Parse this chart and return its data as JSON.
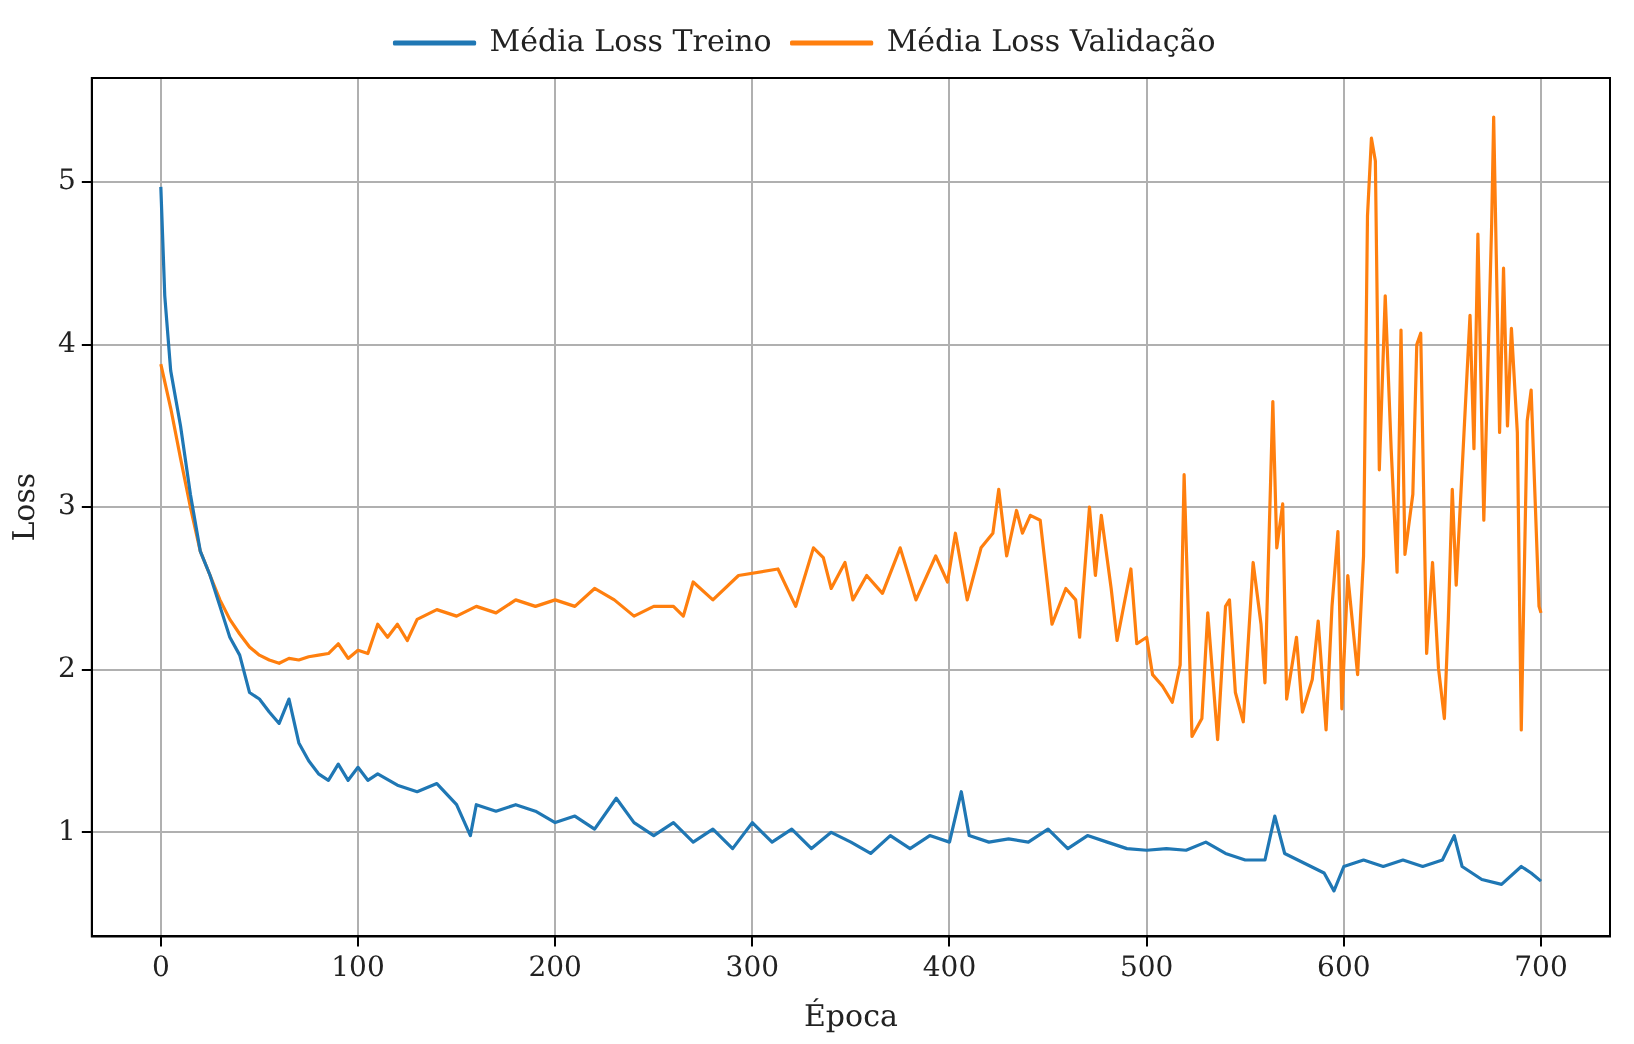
{
  "chart_data": {
    "type": "line",
    "xlabel": "Época",
    "ylabel": "Loss",
    "xlim": [
      -35,
      735
    ],
    "ylim": [
      0.36,
      5.64
    ],
    "xticks": [
      0,
      100,
      200,
      300,
      400,
      500,
      600,
      700
    ],
    "yticks": [
      1,
      2,
      3,
      4,
      5
    ],
    "grid": true,
    "legend": "top",
    "marker": "none",
    "line_style": "solid",
    "series": [
      {
        "name": "Média Loss Treino",
        "color": "#1f77b4",
        "x": [
          0,
          2,
          5,
          10,
          15,
          20,
          25,
          30,
          35,
          40,
          45,
          50,
          55,
          60,
          65,
          70,
          75,
          80,
          85,
          90,
          95,
          100,
          105,
          110,
          120,
          130,
          140,
          150,
          157,
          160,
          170,
          180,
          190,
          200,
          210,
          220,
          231,
          240,
          250,
          260,
          270,
          280,
          290,
          300,
          310,
          320,
          330,
          340,
          350,
          360,
          370,
          380,
          390,
          400,
          406,
          410,
          420,
          430,
          440,
          450,
          460,
          470,
          480,
          490,
          500,
          510,
          520,
          530,
          540,
          550,
          560,
          565,
          570,
          580,
          590,
          595,
          600,
          610,
          620,
          630,
          640,
          650,
          656,
          660,
          670,
          680,
          690,
          695,
          700
        ],
        "values": [
          4.97,
          4.3,
          3.84,
          3.5,
          3.08,
          2.73,
          2.58,
          2.39,
          2.2,
          2.09,
          1.86,
          1.82,
          1.74,
          1.67,
          1.82,
          1.55,
          1.44,
          1.36,
          1.32,
          1.42,
          1.32,
          1.4,
          1.32,
          1.36,
          1.29,
          1.25,
          1.3,
          1.17,
          0.98,
          1.17,
          1.13,
          1.17,
          1.13,
          1.06,
          1.1,
          1.02,
          1.21,
          1.06,
          0.98,
          1.06,
          0.94,
          1.02,
          0.9,
          1.06,
          0.94,
          1.02,
          0.9,
          1.0,
          0.94,
          0.87,
          0.98,
          0.9,
          0.98,
          0.94,
          1.25,
          0.98,
          0.94,
          0.96,
          0.94,
          1.02,
          0.9,
          0.98,
          0.94,
          0.9,
          0.89,
          0.9,
          0.89,
          0.94,
          0.87,
          0.83,
          0.83,
          1.1,
          0.87,
          0.81,
          0.75,
          0.64,
          0.79,
          0.83,
          0.79,
          0.83,
          0.79,
          0.83,
          0.98,
          0.79,
          0.71,
          0.68,
          0.79,
          0.75,
          0.7
        ]
      },
      {
        "name": "Média Loss Validação",
        "color": "#ff7f0e",
        "x": [
          0,
          5,
          10,
          15,
          20,
          25,
          30,
          35,
          40,
          45,
          50,
          55,
          60,
          65,
          70,
          75,
          80,
          85,
          90,
          95,
          100,
          105,
          110,
          115,
          120,
          125,
          130,
          140,
          150,
          160,
          170,
          180,
          190,
          200,
          210,
          220,
          230,
          240,
          250,
          260,
          265,
          270,
          280,
          293,
          313,
          322,
          331,
          336,
          340,
          347,
          351,
          358,
          366,
          375,
          383,
          393,
          399,
          403,
          409,
          416,
          422,
          425,
          429,
          434,
          437,
          441,
          446,
          452,
          459,
          464,
          466,
          471,
          474,
          477,
          482,
          485,
          492,
          495,
          500,
          503,
          508,
          513,
          517,
          519,
          523,
          528,
          531,
          536,
          540,
          542,
          545,
          549,
          554,
          558,
          560,
          564,
          566,
          569,
          571,
          576,
          579,
          584,
          587,
          591,
          594,
          597,
          599,
          602,
          607,
          610,
          612,
          614,
          616,
          618,
          621,
          624,
          627,
          629,
          631,
          635,
          637,
          639,
          642,
          645,
          648,
          651,
          653,
          655,
          657,
          664,
          666,
          668,
          671,
          675,
          676,
          679,
          681,
          683,
          685,
          688,
          690,
          693,
          695,
          699,
          700
        ],
        "values": [
          3.88,
          3.61,
          3.3,
          3.0,
          2.73,
          2.58,
          2.43,
          2.31,
          2.22,
          2.14,
          2.09,
          2.06,
          2.04,
          2.07,
          2.06,
          2.08,
          2.09,
          2.1,
          2.16,
          2.07,
          2.12,
          2.1,
          2.28,
          2.2,
          2.28,
          2.18,
          2.31,
          2.37,
          2.33,
          2.39,
          2.35,
          2.43,
          2.39,
          2.43,
          2.39,
          2.5,
          2.43,
          2.33,
          2.39,
          2.39,
          2.33,
          2.54,
          2.43,
          2.58,
          2.62,
          2.39,
          2.75,
          2.69,
          2.5,
          2.66,
          2.43,
          2.58,
          2.47,
          2.75,
          2.43,
          2.7,
          2.54,
          2.84,
          2.43,
          2.75,
          2.84,
          3.11,
          2.7,
          2.98,
          2.84,
          2.95,
          2.92,
          2.28,
          2.5,
          2.43,
          2.2,
          3.0,
          2.58,
          2.95,
          2.5,
          2.18,
          2.62,
          2.16,
          2.2,
          1.97,
          1.9,
          1.8,
          2.03,
          3.2,
          1.59,
          1.7,
          2.35,
          1.57,
          2.39,
          2.43,
          1.86,
          1.68,
          2.66,
          2.28,
          1.92,
          3.65,
          2.75,
          3.02,
          1.82,
          2.2,
          1.74,
          1.94,
          2.3,
          1.63,
          2.39,
          2.85,
          1.76,
          2.58,
          1.97,
          2.7,
          4.79,
          5.27,
          5.13,
          3.23,
          4.3,
          3.36,
          2.6,
          4.09,
          2.71,
          3.08,
          4.0,
          4.07,
          2.1,
          2.66,
          2.01,
          1.7,
          2.31,
          3.11,
          2.52,
          4.18,
          3.36,
          4.68,
          2.92,
          4.75,
          5.4,
          3.46,
          4.47,
          3.5,
          4.1,
          3.46,
          1.63,
          3.53,
          3.72,
          2.39,
          2.35
        ]
      }
    ]
  }
}
